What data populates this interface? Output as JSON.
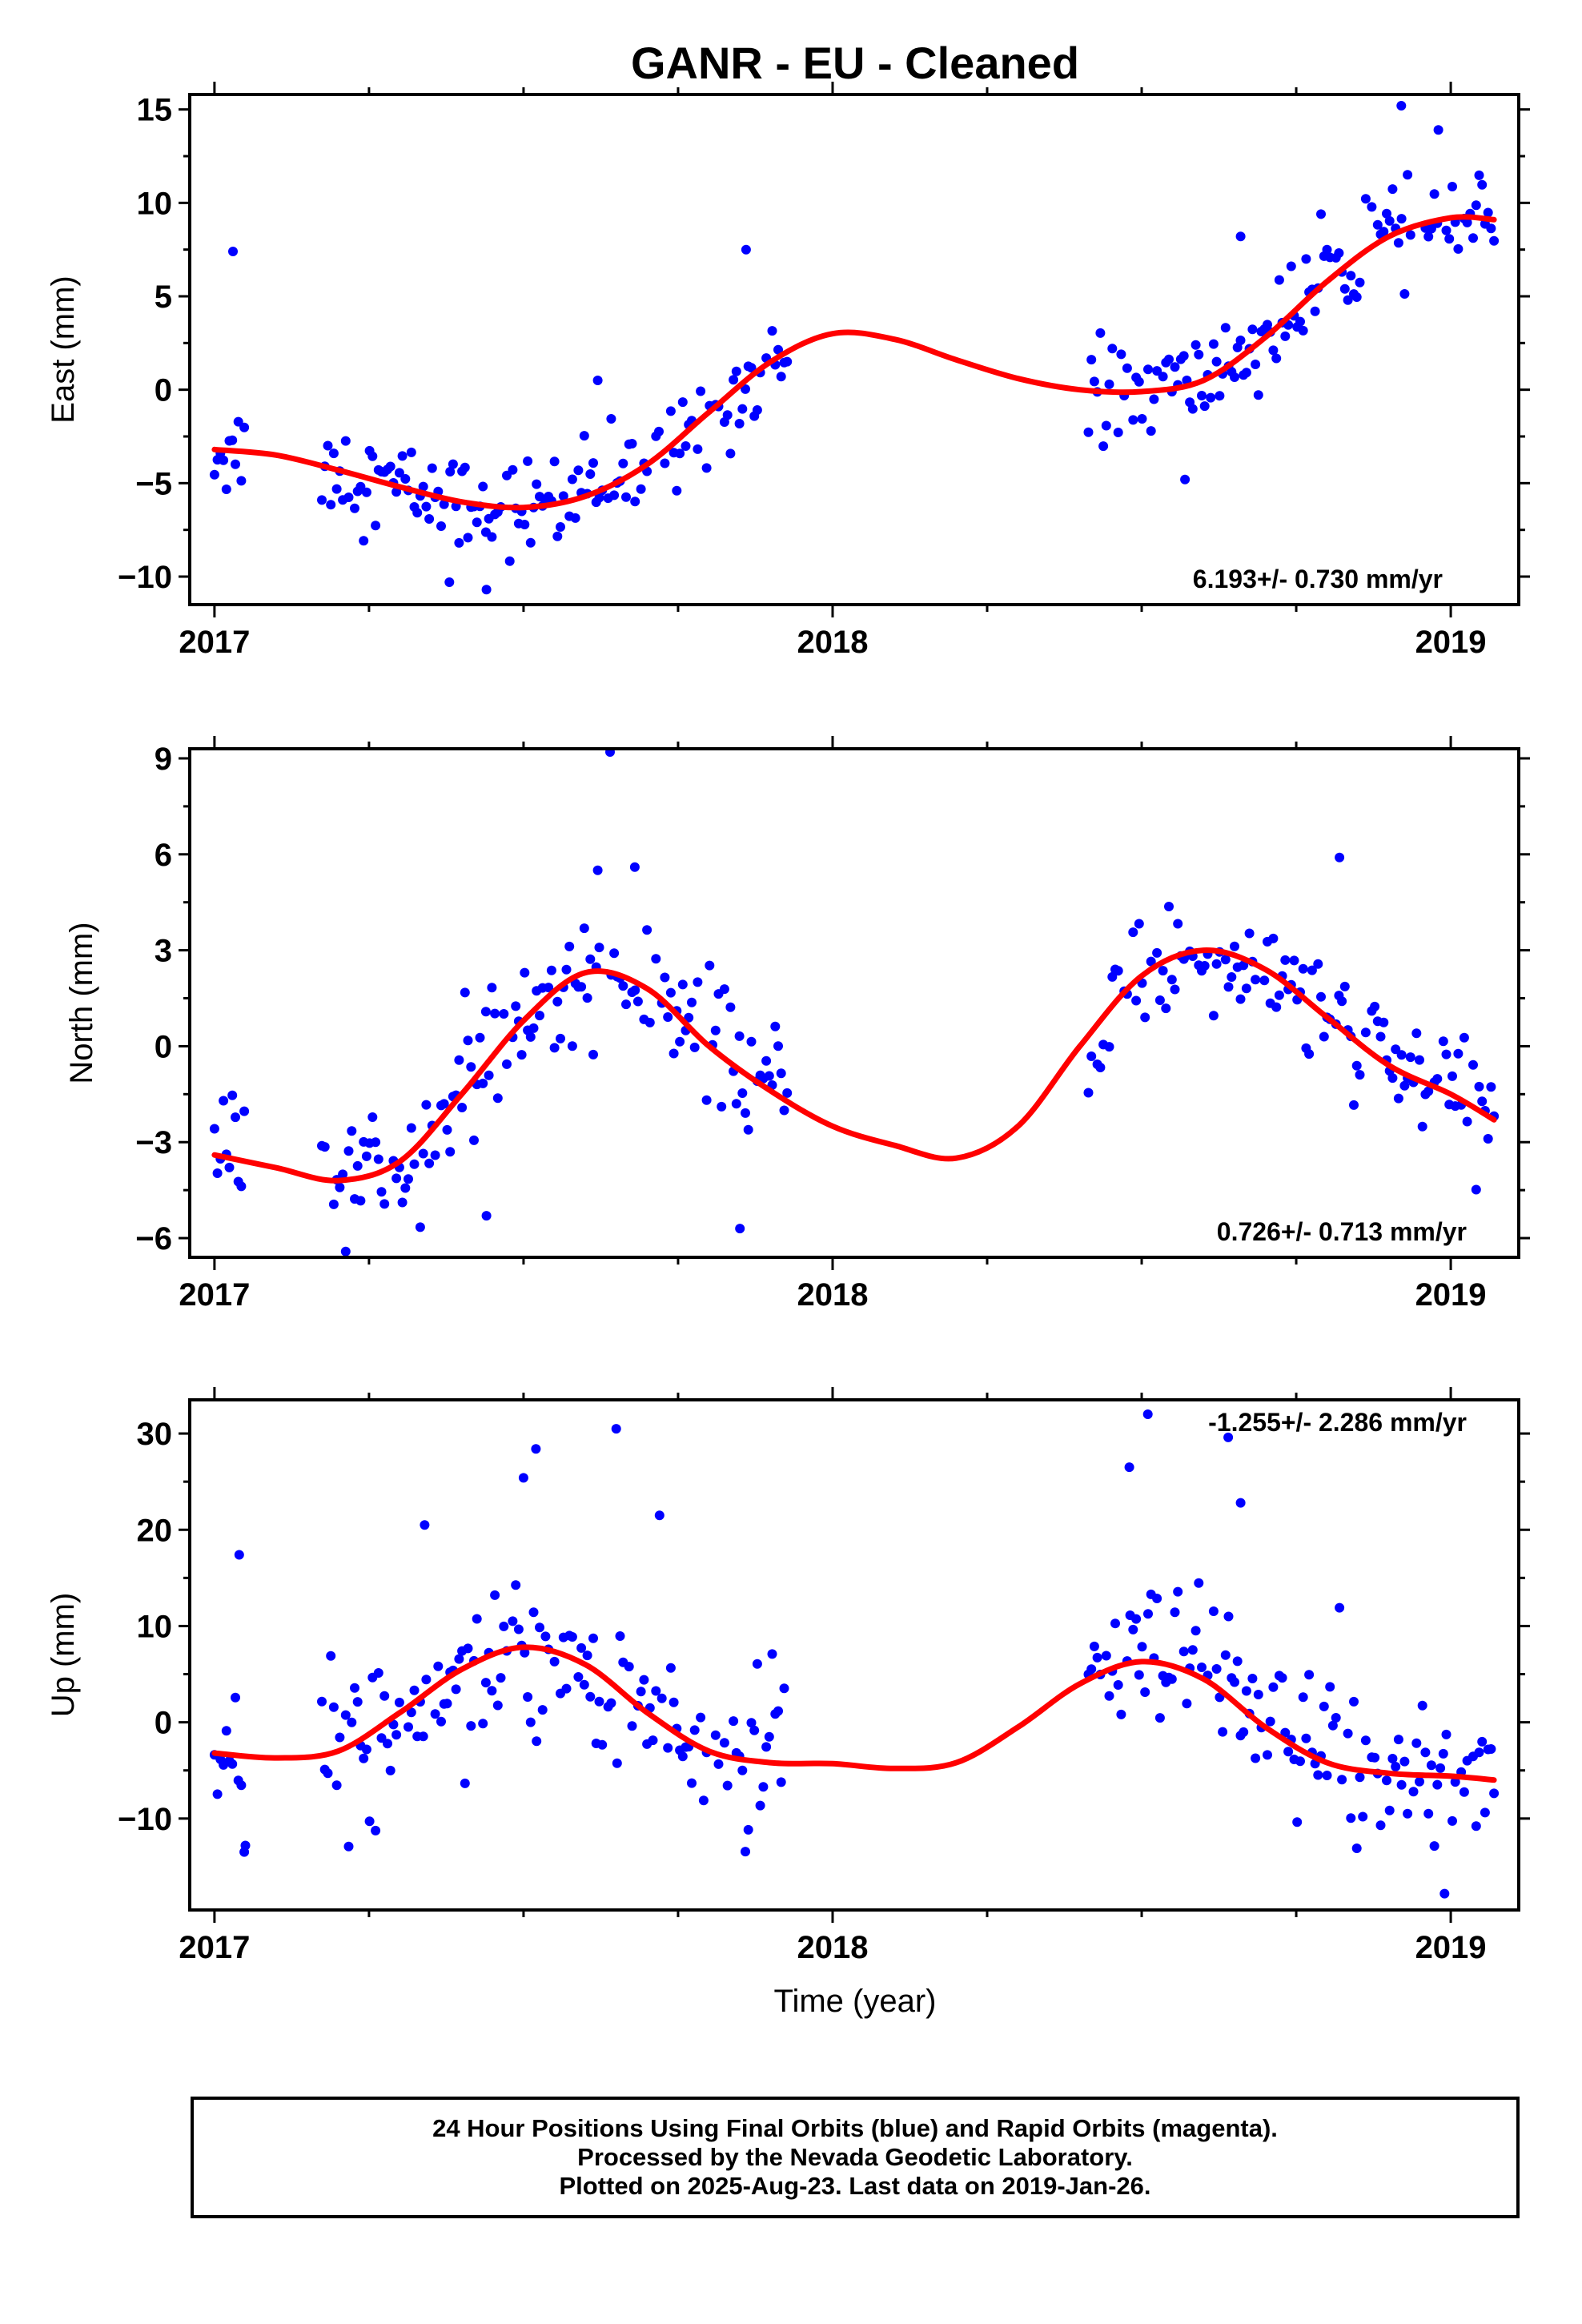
{
  "title": "GANR  - EU - Cleaned",
  "xlabel": "Time (year)",
  "footer": {
    "line1": "24 Hour Positions Using Final Orbits (blue) and Rapid Orbits (magenta).",
    "line2": "Processed by the Nevada Geodetic Laboratory.",
    "line3": "Plotted on 2025-Aug-23. Last data on 2019-Jan-26."
  },
  "colors": {
    "points": "#0000ff",
    "fit": "#ff0000",
    "frame": "#000000"
  },
  "chart_data": [
    {
      "type": "scatter",
      "ylabel": "East (mm)",
      "rate_label": "6.193+/- 0.730 mm/yr",
      "xlim": [
        2016.96,
        2019.11
      ],
      "ylim": [
        -11.5,
        15.8
      ],
      "x_ticks": [
        2017,
        2018,
        2019
      ],
      "y_ticks": [
        -10,
        -5,
        0,
        5,
        10,
        15
      ],
      "fit_trend": 6.193,
      "gaps": [
        [
          2017.93,
          2018.41
        ]
      ],
      "fit_curve": [
        [
          2017.0,
          -3.2
        ],
        [
          2017.1,
          -3.5
        ],
        [
          2017.2,
          -4.3
        ],
        [
          2017.3,
          -5.2
        ],
        [
          2017.4,
          -6.0
        ],
        [
          2017.5,
          -6.3
        ],
        [
          2017.6,
          -5.7
        ],
        [
          2017.7,
          -4.0
        ],
        [
          2017.8,
          -1.2
        ],
        [
          2017.9,
          1.5
        ],
        [
          2018.0,
          3.0
        ],
        [
          2018.1,
          2.7
        ],
        [
          2018.2,
          1.6
        ],
        [
          2018.3,
          0.6
        ],
        [
          2018.4,
          0.0
        ],
        [
          2018.5,
          -0.1
        ],
        [
          2018.6,
          0.5
        ],
        [
          2018.7,
          2.8
        ],
        [
          2018.8,
          5.8
        ],
        [
          2018.9,
          8.2
        ],
        [
          2019.0,
          9.2
        ],
        [
          2019.07,
          9.1
        ]
      ],
      "outliers": [
        [
          2017.03,
          7.4
        ],
        [
          2017.62,
          0.5
        ],
        [
          2017.86,
          7.5
        ],
        [
          2018.66,
          8.2
        ],
        [
          2018.92,
          15.2
        ],
        [
          2018.98,
          13.9
        ],
        [
          2018.57,
          -4.8
        ],
        [
          2017.44,
          -10.7
        ],
        [
          2017.38,
          -10.3
        ]
      ]
    },
    {
      "type": "scatter",
      "ylabel": "North (mm)",
      "rate_label": "0.726+/- 0.713 mm/yr",
      "xlim": [
        2016.96,
        2019.11
      ],
      "ylim": [
        -6.6,
        9.3
      ],
      "x_ticks": [
        2017,
        2018,
        2019
      ],
      "y_ticks": [
        -6,
        -3,
        0,
        3,
        6,
        9
      ],
      "fit_trend": 0.726,
      "gaps": [
        [
          2017.93,
          2018.41
        ]
      ],
      "fit_curve": [
        [
          2017.0,
          -3.4
        ],
        [
          2017.1,
          -3.8
        ],
        [
          2017.2,
          -4.2
        ],
        [
          2017.3,
          -3.6
        ],
        [
          2017.4,
          -1.5
        ],
        [
          2017.5,
          0.8
        ],
        [
          2017.6,
          2.3
        ],
        [
          2017.7,
          1.8
        ],
        [
          2017.8,
          0.0
        ],
        [
          2017.9,
          -1.4
        ],
        [
          2018.0,
          -2.5
        ],
        [
          2018.1,
          -3.1
        ],
        [
          2018.2,
          -3.5
        ],
        [
          2018.3,
          -2.5
        ],
        [
          2018.4,
          0.0
        ],
        [
          2018.5,
          2.2
        ],
        [
          2018.6,
          3.0
        ],
        [
          2018.7,
          2.4
        ],
        [
          2018.8,
          0.9
        ],
        [
          2018.9,
          -0.6
        ],
        [
          2019.0,
          -1.5
        ],
        [
          2019.07,
          -2.3
        ]
      ],
      "outliers": [
        [
          2017.64,
          9.2
        ],
        [
          2017.68,
          5.6
        ],
        [
          2017.62,
          5.5
        ],
        [
          2018.82,
          5.9
        ],
        [
          2017.85,
          -5.7
        ],
        [
          2017.44,
          -5.3
        ]
      ]
    },
    {
      "type": "scatter",
      "ylabel": "Up (mm)",
      "rate_label": "-1.255+/- 2.286 mm/yr",
      "xlim": [
        2016.96,
        2019.11
      ],
      "ylim": [
        -19.5,
        33.5
      ],
      "x_ticks": [
        2017,
        2018,
        2019
      ],
      "y_ticks": [
        -10,
        0,
        10,
        20,
        30
      ],
      "fit_trend": -1.255,
      "gaps": [
        [
          2017.93,
          2018.41
        ]
      ],
      "fit_curve": [
        [
          2017.0,
          -3.2
        ],
        [
          2017.1,
          -3.7
        ],
        [
          2017.2,
          -3.0
        ],
        [
          2017.3,
          1.0
        ],
        [
          2017.4,
          5.5
        ],
        [
          2017.5,
          7.8
        ],
        [
          2017.6,
          6.0
        ],
        [
          2017.7,
          1.0
        ],
        [
          2017.8,
          -3.0
        ],
        [
          2017.9,
          -4.2
        ],
        [
          2018.0,
          -4.3
        ],
        [
          2018.1,
          -4.8
        ],
        [
          2018.2,
          -4.2
        ],
        [
          2018.3,
          -0.5
        ],
        [
          2018.4,
          4.0
        ],
        [
          2018.5,
          6.3
        ],
        [
          2018.6,
          4.5
        ],
        [
          2018.7,
          -0.5
        ],
        [
          2018.8,
          -4.2
        ],
        [
          2018.9,
          -5.3
        ],
        [
          2019.0,
          -5.6
        ],
        [
          2019.07,
          -6.0
        ]
      ],
      "outliers": [
        [
          2017.65,
          30.5
        ],
        [
          2017.52,
          28.4
        ],
        [
          2018.51,
          32.0
        ],
        [
          2018.64,
          29.6
        ],
        [
          2017.5,
          25.4
        ],
        [
          2018.48,
          26.5
        ],
        [
          2018.66,
          22.8
        ],
        [
          2017.72,
          21.5
        ],
        [
          2017.04,
          17.4
        ],
        [
          2017.34,
          20.5
        ],
        [
          2018.82,
          11.9
        ],
        [
          2018.99,
          -17.8
        ],
        [
          2017.05,
          -12.8
        ]
      ]
    }
  ]
}
